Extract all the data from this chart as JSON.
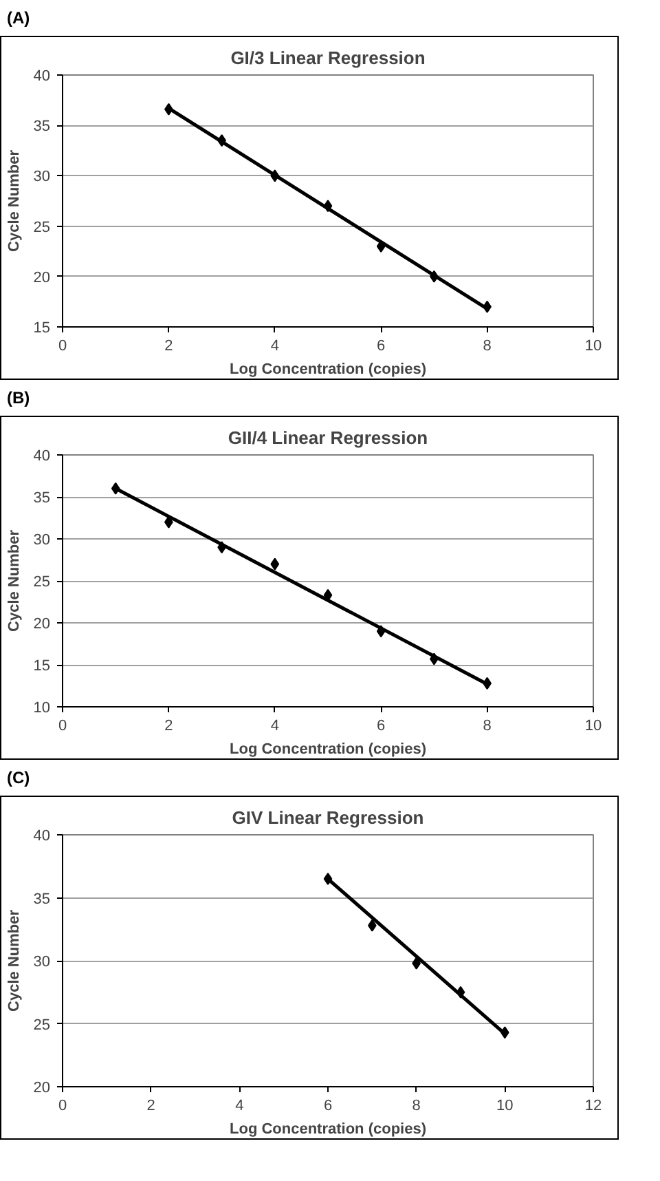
{
  "chart_data": [
    {
      "type": "scatter",
      "title": "GI/3 Linear Regression",
      "annotations": [
        "(A)"
      ],
      "xlabel": "Log Concentration (copies)",
      "ylabel": "Cycle Number",
      "xlim": [
        0,
        10
      ],
      "xticks": [
        0,
        2,
        4,
        6,
        8,
        10
      ],
      "ylim": [
        15,
        40
      ],
      "yticks": [
        15,
        20,
        25,
        30,
        35,
        40
      ],
      "grid": "y",
      "series": [
        {
          "marker": "diamond",
          "color": "#000000",
          "x": [
            2,
            3,
            4,
            5,
            6,
            7,
            8
          ],
          "values": [
            36.6,
            33.5,
            30,
            27,
            23,
            20,
            17
          ]
        },
        {
          "type": "line",
          "marker": "none",
          "color": "#000000",
          "x": [
            2,
            8
          ],
          "values": [
            36.7,
            16.8
          ]
        }
      ]
    },
    {
      "type": "scatter",
      "title": "GII/4 Linear Regression",
      "annotations": [
        "(B)"
      ],
      "xlabel": "Log Concentration (copies)",
      "ylabel": "Cycle Number",
      "xlim": [
        0,
        10
      ],
      "xticks": [
        0,
        2,
        4,
        6,
        8,
        10
      ],
      "ylim": [
        10,
        40
      ],
      "yticks": [
        10,
        15,
        20,
        25,
        30,
        35,
        40
      ],
      "grid": "y",
      "series": [
        {
          "marker": "diamond",
          "color": "#000000",
          "x": [
            1,
            2,
            3,
            4,
            5,
            6,
            7,
            8
          ],
          "values": [
            36,
            32,
            29,
            27,
            23.3,
            19,
            15.7,
            12.8
          ]
        },
        {
          "type": "line",
          "marker": "none",
          "color": "#000000",
          "x": [
            1,
            8
          ],
          "values": [
            36,
            12.7
          ]
        }
      ]
    },
    {
      "type": "scatter",
      "title": "GIV Linear Regression",
      "annotations": [
        "(C)"
      ],
      "xlabel": "Log Concentration (copies)",
      "ylabel": "Cycle Number",
      "xlim": [
        0,
        12
      ],
      "xticks": [
        0,
        2,
        4,
        6,
        8,
        10,
        12
      ],
      "ylim": [
        20,
        40
      ],
      "yticks": [
        20,
        25,
        30,
        35,
        40
      ],
      "grid": "y",
      "series": [
        {
          "marker": "diamond",
          "color": "#000000",
          "x": [
            6,
            7,
            8,
            9,
            10
          ],
          "values": [
            36.5,
            32.8,
            29.8,
            27.5,
            24.3
          ]
        },
        {
          "type": "line",
          "marker": "none",
          "color": "#000000",
          "x": [
            6,
            10
          ],
          "values": [
            36.5,
            24.2
          ]
        }
      ]
    }
  ]
}
